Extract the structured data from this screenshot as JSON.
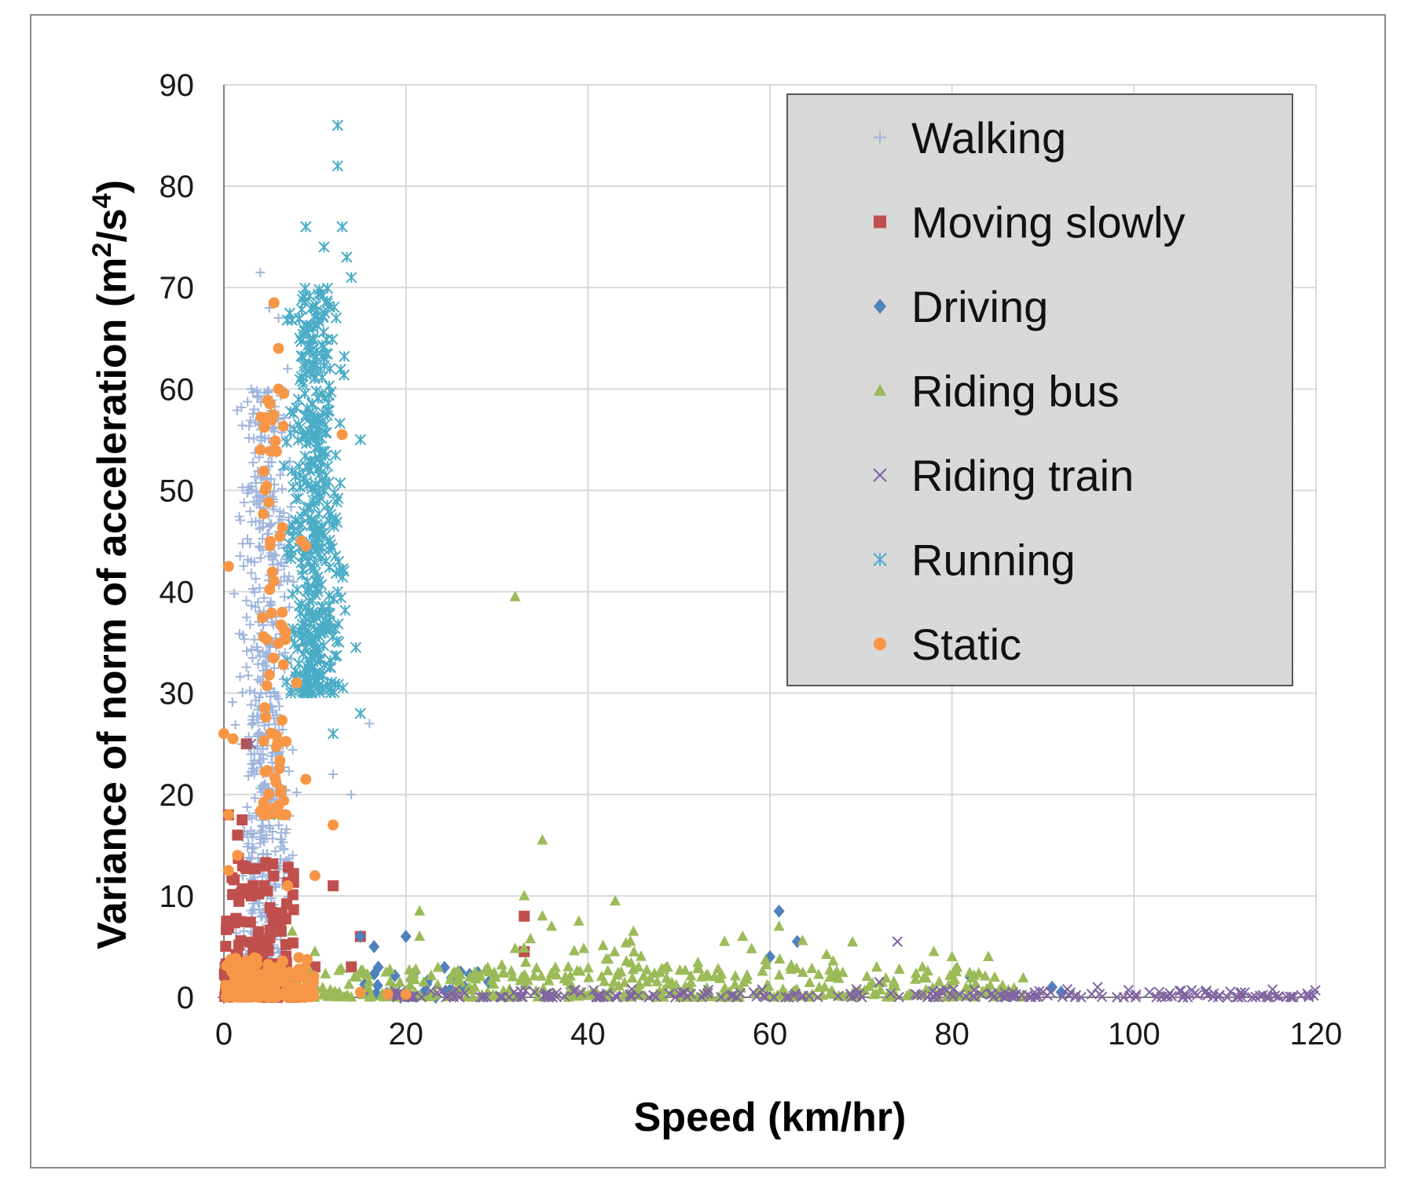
{
  "chart_data": {
    "type": "scatter",
    "title": "",
    "xlabel": "Speed (km/hr)",
    "ylabel_prefix": "Variance of norm of acceleration (m",
    "ylabel_sup1": "2",
    "ylabel_mid": "/s",
    "ylabel_sup2": "4",
    "ylabel_suffix": ")",
    "xlim": [
      0,
      120
    ],
    "ylim": [
      0,
      90
    ],
    "xticks": [
      0,
      20,
      40,
      60,
      80,
      100,
      120
    ],
    "yticks": [
      0,
      10,
      20,
      30,
      40,
      50,
      60,
      70,
      80,
      90
    ],
    "grid": true,
    "legend_position": "top-right",
    "series": [
      {
        "name": "Walking",
        "marker": "plus",
        "color": "#9fb5dc",
        "clusters": [
          {
            "x_range": [
              1,
              9
            ],
            "y_range": [
              0,
              60
            ],
            "n": 650,
            "peak_x": 4.5
          }
        ],
        "points": [
          [
            4,
            71.5
          ],
          [
            5,
            68
          ],
          [
            6,
            67
          ],
          [
            7,
            62
          ],
          [
            3,
            60
          ],
          [
            16,
            27
          ],
          [
            12,
            22
          ],
          [
            14,
            20
          ],
          [
            9,
            35
          ]
        ]
      },
      {
        "name": "Moving slowly",
        "marker": "square",
        "color": "#c0504d",
        "clusters": [
          {
            "x_range": [
              0,
              8
            ],
            "y_range": [
              0,
              14
            ],
            "n": 140
          }
        ],
        "points": [
          [
            0.5,
            18
          ],
          [
            2,
            17.5
          ],
          [
            1.5,
            16
          ],
          [
            2.5,
            25
          ],
          [
            12,
            11
          ],
          [
            15,
            6
          ],
          [
            33,
            8
          ],
          [
            33,
            4.5
          ],
          [
            14,
            3
          ],
          [
            10,
            3
          ],
          [
            6,
            7
          ],
          [
            3,
            10
          ]
        ]
      },
      {
        "name": "Driving",
        "marker": "diamond",
        "color": "#4f81bd",
        "clusters": [
          {
            "x_range": [
              14,
              30
            ],
            "y_range": [
              0,
              3
            ],
            "n": 25
          }
        ],
        "points": [
          [
            15,
            6
          ],
          [
            16.5,
            5
          ],
          [
            20,
            6
          ],
          [
            21,
            2.5
          ],
          [
            26,
            2.5
          ],
          [
            60,
            4
          ],
          [
            61,
            8.5
          ],
          [
            63,
            5.5
          ],
          [
            82,
            2
          ],
          [
            91,
            1
          ],
          [
            92,
            0.5
          ]
        ]
      },
      {
        "name": "Riding bus",
        "marker": "triangle",
        "color": "#9bbb59",
        "clusters": [
          {
            "x_range": [
              5,
              88
            ],
            "y_range": [
              0,
              3
            ],
            "n": 380
          },
          {
            "x_range": [
              30,
              70
            ],
            "y_range": [
              2,
              6
            ],
            "n": 60
          }
        ],
        "points": [
          [
            32,
            39.5
          ],
          [
            35,
            15.5
          ],
          [
            21.5,
            8.5
          ],
          [
            21.5,
            6
          ],
          [
            33,
            10
          ],
          [
            35,
            8
          ],
          [
            36,
            7
          ],
          [
            39,
            7.5
          ],
          [
            43,
            9.5
          ],
          [
            45,
            6.5
          ],
          [
            55,
            5.5
          ],
          [
            57,
            6
          ],
          [
            61,
            7
          ],
          [
            80,
            4
          ],
          [
            84,
            4
          ],
          [
            78,
            4.5
          ],
          [
            7.5,
            6.5
          ],
          [
            10,
            4.5
          ]
        ]
      },
      {
        "name": "Riding train",
        "marker": "x",
        "color": "#8064a2",
        "clusters": [
          {
            "x_range": [
              18,
              120
            ],
            "y_range": [
              0,
              0.8
            ],
            "n": 230
          }
        ],
        "points": [
          [
            74,
            5.5
          ],
          [
            96,
            1
          ],
          [
            72,
            1.5
          ],
          [
            3,
            25
          ]
        ]
      },
      {
        "name": "Running",
        "marker": "star",
        "color": "#4bacc6",
        "clusters": [
          {
            "x_range": [
              6,
              14
            ],
            "y_range": [
              30,
              70
            ],
            "n": 450,
            "peak_x": 10
          }
        ],
        "points": [
          [
            12.5,
            86
          ],
          [
            12.5,
            82
          ],
          [
            13,
            76
          ],
          [
            9,
            76
          ],
          [
            11,
            74
          ],
          [
            13.5,
            73
          ],
          [
            14,
            71
          ],
          [
            15,
            55
          ],
          [
            14.5,
            34.5
          ],
          [
            15,
            28
          ],
          [
            6,
            18
          ],
          [
            12,
            26
          ]
        ]
      },
      {
        "name": "Static",
        "marker": "circle",
        "color": "#f79646",
        "clusters": [
          {
            "x_range": [
              4,
              7
            ],
            "y_range": [
              18,
              60
            ],
            "n": 75
          },
          {
            "x_range": [
              0,
              10
            ],
            "y_range": [
              0,
              4
            ],
            "n": 160
          }
        ],
        "points": [
          [
            5.5,
            68.5
          ],
          [
            6,
            64
          ],
          [
            6,
            60
          ],
          [
            13,
            55.5
          ],
          [
            0.5,
            42.5
          ],
          [
            8.5,
            45
          ],
          [
            9,
            44.5
          ],
          [
            0,
            26
          ],
          [
            1,
            25.5
          ],
          [
            8,
            31
          ],
          [
            9,
            21.5
          ],
          [
            12,
            17
          ],
          [
            10,
            12
          ],
          [
            0.5,
            18
          ],
          [
            7,
            11
          ],
          [
            1.5,
            14
          ],
          [
            0.5,
            12.5
          ],
          [
            20,
            0.3
          ],
          [
            18,
            0.3
          ],
          [
            15,
            0.5
          ]
        ]
      }
    ]
  }
}
